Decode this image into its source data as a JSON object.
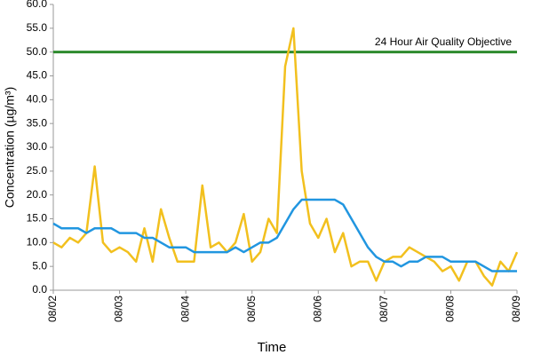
{
  "chart_data": {
    "type": "line",
    "xlabel": "Time",
    "ylabel": "Concentration (µg/m³)",
    "x": [
      0,
      0.125,
      0.25,
      0.375,
      0.5,
      0.625,
      0.75,
      0.875,
      1,
      1.125,
      1.25,
      1.375,
      1.5,
      1.625,
      1.75,
      1.875,
      2,
      2.125,
      2.25,
      2.375,
      2.5,
      2.625,
      2.75,
      2.875,
      3,
      3.125,
      3.25,
      3.375,
      3.5,
      3.625,
      3.75,
      3.875,
      4,
      4.125,
      4.25,
      4.375,
      4.5,
      4.625,
      4.75,
      4.875,
      5,
      5.125,
      5.25,
      5.375,
      5.5,
      5.625,
      5.75,
      5.875,
      6,
      6.125,
      6.25,
      6.375,
      6.5,
      6.625,
      6.75,
      6.875,
      7
    ],
    "series": [
      {
        "color": "#f2c01e",
        "values": [
          10,
          9,
          11,
          10,
          12,
          26,
          10,
          8,
          9,
          8,
          6,
          13,
          6,
          17,
          11,
          6,
          6,
          6,
          22,
          9,
          10,
          8,
          10,
          16,
          6,
          8,
          15,
          12,
          47,
          55,
          25,
          14,
          11,
          15,
          8,
          12,
          5,
          6,
          6,
          2,
          6,
          7,
          7,
          9,
          8,
          7,
          6,
          4,
          5,
          2,
          6,
          6,
          3,
          1,
          6,
          4,
          8
        ]
      },
      {
        "color": "#2196e0",
        "values": [
          14,
          13,
          13,
          13,
          12,
          13,
          13,
          13,
          12,
          12,
          12,
          11,
          11,
          10,
          9,
          9,
          9,
          8,
          8,
          8,
          8,
          8,
          9,
          8,
          9,
          10,
          10,
          11,
          14,
          17,
          19,
          19,
          19,
          19,
          19,
          18,
          15,
          12,
          9,
          7,
          6,
          6,
          5,
          6,
          6,
          7,
          7,
          7,
          6,
          6,
          6,
          6,
          5,
          4,
          4,
          4,
          4
        ]
      }
    ],
    "reference_line": {
      "value": 50,
      "label": "24 Hour Air Quality Objective",
      "color": "#2e8b2e"
    },
    "xlim": [
      0,
      7
    ],
    "xticks": [
      {
        "value": 0,
        "label": "08/02"
      },
      {
        "value": 1,
        "label": "08/03"
      },
      {
        "value": 2,
        "label": "08/04"
      },
      {
        "value": 3,
        "label": "08/05"
      },
      {
        "value": 4,
        "label": "08/06"
      },
      {
        "value": 5,
        "label": "08/07"
      },
      {
        "value": 6,
        "label": "08/08"
      },
      {
        "value": 7,
        "label": "08/09"
      }
    ],
    "ylim": [
      0,
      60
    ],
    "yticks": [
      {
        "value": 0,
        "label": "0.0"
      },
      {
        "value": 5,
        "label": "5.0"
      },
      {
        "value": 10,
        "label": "10.0"
      },
      {
        "value": 15,
        "label": "15.0"
      },
      {
        "value": 20,
        "label": "20.0"
      },
      {
        "value": 25,
        "label": "25.0"
      },
      {
        "value": 30,
        "label": "30.0"
      },
      {
        "value": 35,
        "label": "35.0"
      },
      {
        "value": 40,
        "label": "40.0"
      },
      {
        "value": 45,
        "label": "45.0"
      },
      {
        "value": 50,
        "label": "50.0"
      },
      {
        "value": 55,
        "label": "55.0"
      },
      {
        "value": 60,
        "label": "60.0"
      }
    ]
  }
}
